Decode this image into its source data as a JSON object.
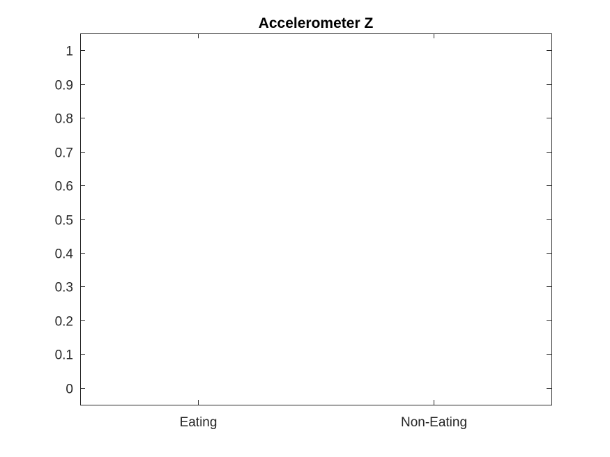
{
  "chart_data": {
    "type": "bar",
    "title": "Accelerometer Z",
    "xlabel": "",
    "ylabel": "",
    "categories": [
      "Eating",
      "Non-Eating"
    ],
    "series": [],
    "ylim": [
      -0.05,
      1.05
    ],
    "yticks": [
      0,
      0.1,
      0.2,
      0.3,
      0.4,
      0.5,
      0.6,
      0.7,
      0.8,
      0.9,
      1
    ],
    "ytick_labels": [
      "0",
      "0.1",
      "0.2",
      "0.3",
      "0.4",
      "0.5",
      "0.6",
      "0.7",
      "0.8",
      "0.9",
      "1"
    ],
    "grid": false,
    "legend": "none",
    "colors": {
      "axis": "#262626",
      "title": "#000000",
      "background": "#ffffff"
    }
  }
}
